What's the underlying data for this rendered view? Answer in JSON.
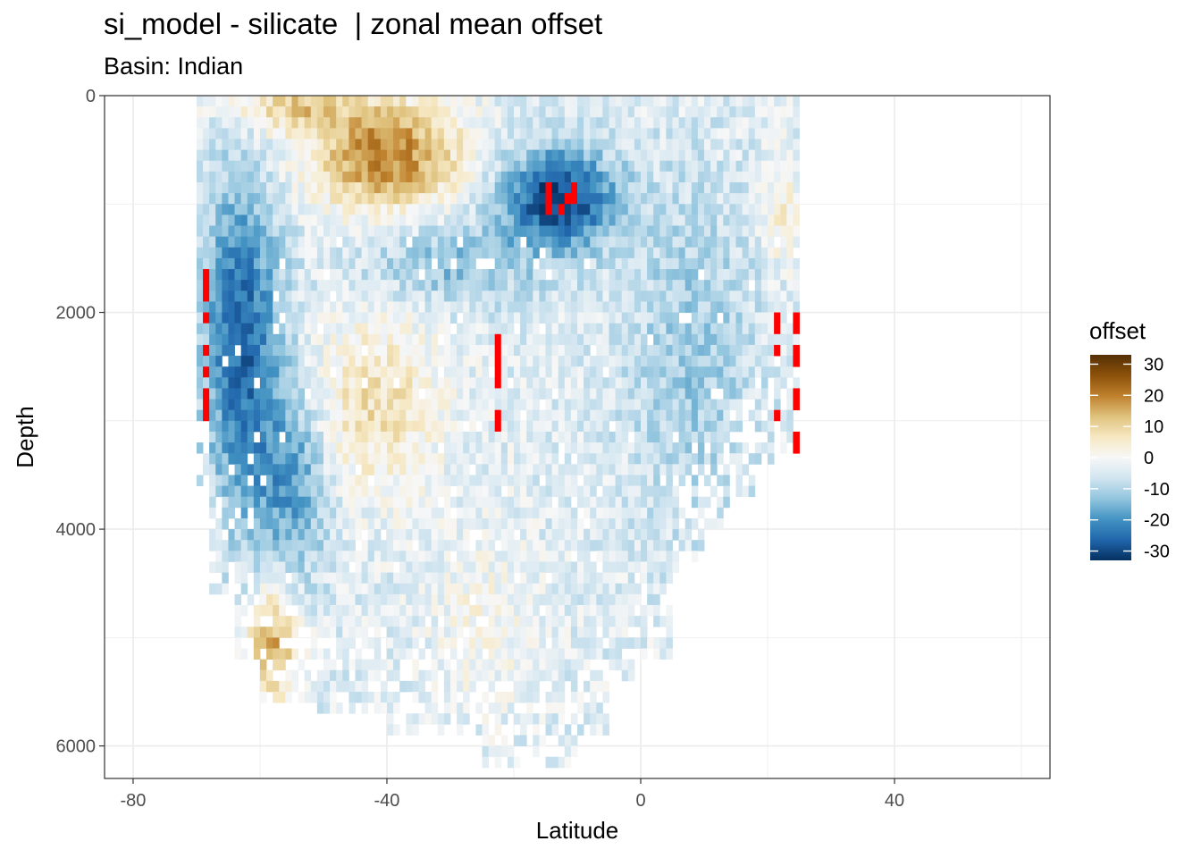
{
  "chart_data": {
    "type": "heatmap",
    "title": "si_model - silicate  | zonal mean offset",
    "subtitle": "Basin: Indian",
    "xlabel": "Latitude",
    "ylabel": "Depth",
    "x_ticks": [
      -80,
      -40,
      0,
      40
    ],
    "y_ticks": [
      0,
      2000,
      4000,
      6000
    ],
    "xlim": [
      -84.5,
      64.5
    ],
    "ylim": [
      6300,
      0
    ],
    "y_reversed": true,
    "grid": true,
    "legend": {
      "title": "offset",
      "position": "right",
      "breaks": [
        30,
        20,
        10,
        0,
        -10,
        -20,
        -30
      ],
      "range": [
        -33,
        33
      ],
      "colors": [
        "#053061",
        "#2166ac",
        "#4393c3",
        "#92c5de",
        "#d1e5f0",
        "#f7f7f7",
        "#f6e8c3",
        "#dfc27d",
        "#bf812d",
        "#8c510a",
        "#543005"
      ],
      "out_of_range_color": "#ff0000"
    },
    "data_extent": {
      "lat_min": -69.5,
      "lat_max": 24.5,
      "lat_step": 1,
      "depth_step": 100,
      "max_depth": 6200
    },
    "features": [
      {
        "lat": -31,
        "depth": 700,
        "value": 22,
        "desc": "positive offset near surface 40-20S"
      },
      {
        "lat": -12,
        "depth": 800,
        "value": -28,
        "desc": "strong negative core near 1000 m"
      },
      {
        "lat": -62,
        "depth": 2000,
        "value": -24,
        "desc": "deep negative offset at southern boundary"
      },
      {
        "lat": -40,
        "depth": 2900,
        "value": 10,
        "desc": "positive patch mid depth"
      },
      {
        "lat": -58,
        "depth": 4900,
        "value": 18,
        "desc": "positive offset deep near 60S"
      },
      {
        "lat": 0,
        "depth": 3500,
        "value": -6,
        "desc": "weak negative in deep tropics"
      }
    ]
  }
}
